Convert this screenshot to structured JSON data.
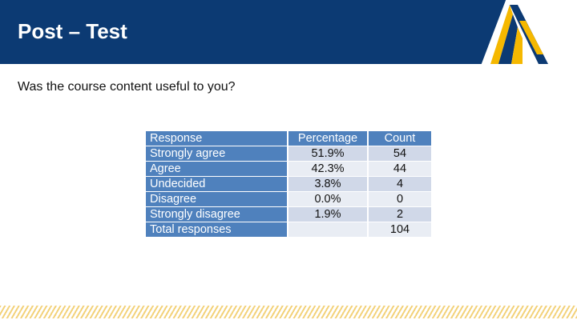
{
  "slide": {
    "title": "Post – Test",
    "question": "Was the course content useful to you?"
  },
  "logo": {
    "icon": "a-peak-logo-icon",
    "colors": [
      "#f5b800",
      "#0c3a73"
    ]
  },
  "theme": {
    "header": "#0c3a73",
    "table_header": "#4f81bd",
    "row_dark": "#d0d8e8",
    "row_light": "#e9edf4",
    "accent_stripe": "#f3d27a"
  },
  "table": {
    "headers": {
      "response": "Response",
      "percentage": "Percentage",
      "count": "Count"
    },
    "rows": [
      {
        "response": "Strongly agree",
        "percentage": "51.9%",
        "count": "54"
      },
      {
        "response": "Agree",
        "percentage": "42.3%",
        "count": "44"
      },
      {
        "response": "Undecided",
        "percentage": "3.8%",
        "count": "4"
      },
      {
        "response": "Disagree",
        "percentage": "0.0%",
        "count": "0"
      },
      {
        "response": "Strongly disagree",
        "percentage": "1.9%",
        "count": "2"
      },
      {
        "response": "Total responses",
        "percentage": "",
        "count": "104"
      }
    ]
  }
}
